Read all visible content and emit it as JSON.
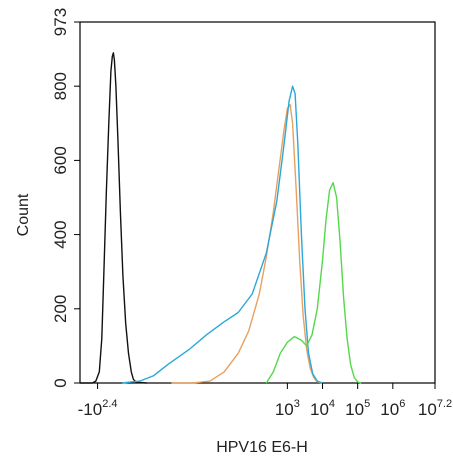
{
  "chart_data": {
    "type": "line",
    "subtype": "flow-cytometry-histogram",
    "title": "",
    "xlabel": "HPV16 E6-H",
    "ylabel": "Count",
    "xscale": "biexponential (log above ~10^2.4)",
    "x_tick_labels": [
      {
        "pos": -2.4,
        "base": "-10",
        "exp": "2.4"
      },
      {
        "pos": 3,
        "base": "10",
        "exp": "3"
      },
      {
        "pos": 4,
        "base": "10",
        "exp": "4"
      },
      {
        "pos": 5,
        "base": "10",
        "exp": "5"
      },
      {
        "pos": 6,
        "base": "10",
        "exp": "6"
      },
      {
        "pos": 7.2,
        "base": "10",
        "exp": "7.2"
      }
    ],
    "y_ticks": [
      0,
      200,
      400,
      600,
      800,
      973
    ],
    "ylim": [
      0,
      973
    ],
    "xlim": [
      -2.9,
      7.2
    ],
    "grid": false,
    "legend": "none",
    "series": [
      {
        "color": "#111111",
        "x": [
          -2.9,
          -2.55,
          -2.45,
          -2.35,
          -2.28,
          -2.22,
          -2.15,
          -2.08,
          -2.02,
          -1.98,
          -1.95,
          -1.92,
          -1.88,
          -1.82,
          -1.75,
          -1.68,
          -1.6,
          -1.52,
          -1.44,
          -1.38,
          -1.3,
          -1.0
        ],
        "y": [
          0,
          0,
          5,
          30,
          120,
          300,
          520,
          700,
          840,
          880,
          890,
          870,
          800,
          650,
          460,
          290,
          160,
          80,
          30,
          10,
          2,
          0
        ]
      },
      {
        "color": "#E8A060",
        "x": [
          -0.3,
          0.3,
          0.8,
          1.2,
          1.6,
          1.9,
          2.2,
          2.4,
          2.6,
          2.75,
          2.9,
          3.0,
          3.08,
          3.15,
          3.25,
          3.35,
          3.45,
          3.55,
          3.65,
          3.75,
          3.85,
          4.0
        ],
        "y": [
          0,
          0,
          5,
          30,
          80,
          140,
          240,
          340,
          460,
          570,
          680,
          740,
          750,
          700,
          520,
          330,
          180,
          90,
          40,
          15,
          3,
          0
        ]
      },
      {
        "color": "#2AA8D8",
        "x": [
          -1.7,
          -1.2,
          -0.8,
          -0.4,
          0.2,
          0.7,
          1.2,
          1.6,
          2.0,
          2.4,
          2.7,
          2.9,
          3.05,
          3.15,
          3.22,
          3.3,
          3.4,
          3.5,
          3.6,
          3.72,
          3.85,
          4.0
        ],
        "y": [
          0,
          5,
          20,
          50,
          90,
          130,
          165,
          190,
          240,
          350,
          490,
          640,
          760,
          800,
          780,
          640,
          400,
          200,
          80,
          25,
          5,
          0
        ]
      },
      {
        "color": "#55D84A",
        "x": [
          2.4,
          2.6,
          2.8,
          3.0,
          3.2,
          3.4,
          3.55,
          3.7,
          3.85,
          4.0,
          4.1,
          4.2,
          4.3,
          4.4,
          4.5,
          4.6,
          4.7,
          4.8,
          4.9,
          5.0,
          5.1
        ],
        "y": [
          0,
          30,
          80,
          110,
          125,
          115,
          100,
          130,
          200,
          330,
          440,
          520,
          540,
          500,
          380,
          230,
          120,
          50,
          15,
          3,
          0
        ]
      }
    ]
  }
}
